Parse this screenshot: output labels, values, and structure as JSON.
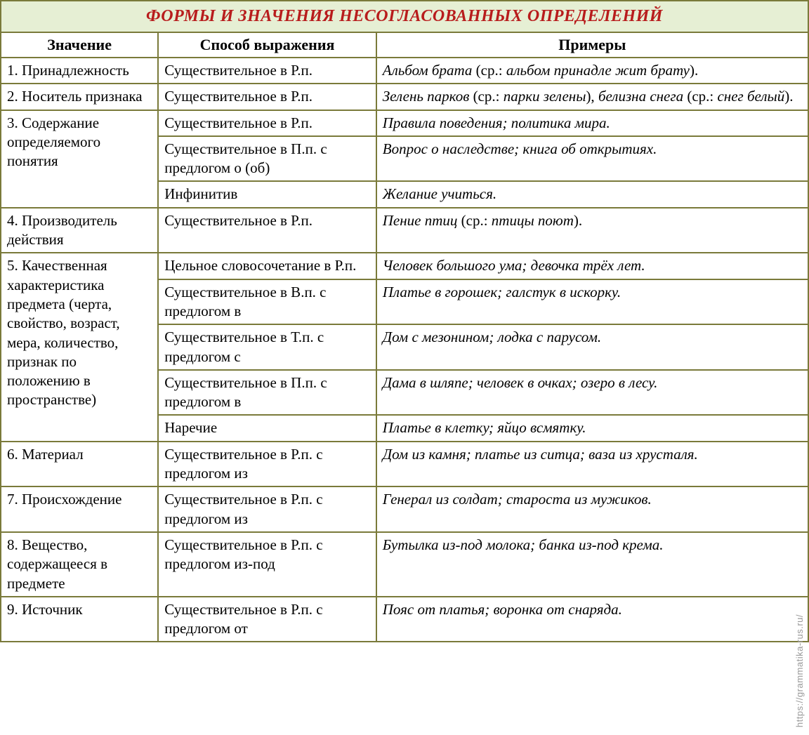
{
  "title": "ФОРМЫ И ЗНАЧЕНИЯ НЕСОГЛАСОВАННЫХ ОПРЕДЕЛЕНИЙ",
  "columns": {
    "meaning": "Значение",
    "method": "Способ выражения",
    "examples": "Примеры"
  },
  "col_widths": {
    "meaning": "19.5%",
    "method": "27%",
    "examples": "53.5%"
  },
  "rows": [
    {
      "meaning": "1. Принадлежность",
      "sub": [
        {
          "method": "Существительное в Р.п.",
          "examples_html": "<i>Альбом брата</i> <span class='note'>(ср.:</span> <i>альбом принадле жит брату</i><span class='note'>).</span>"
        }
      ]
    },
    {
      "meaning": "2. Носитель признака",
      "sub": [
        {
          "method": "Существительное в Р.п.",
          "examples_html": "<i>Зелень парков</i> <span class='note'>(ср.:</span> <i>парки зелены</i><span class='note'>),</span> <i>белизна снега</i> <span class='note'>(ср.:</span> <i>снег белый</i><span class='note'>).</span>"
        }
      ]
    },
    {
      "meaning": "3. Содержание определяемого понятия",
      "sub": [
        {
          "method": "Существительное в Р.п.",
          "examples_html": "<i>Правила поведения; политика мира.</i>"
        },
        {
          "method": "Существительное в П.п. с предлогом о (об)",
          "examples_html": "<i>Вопрос о наследстве; книга об открытиях.</i>"
        },
        {
          "method": "Инфинитив",
          "examples_html": "<i>Желание учиться.</i>"
        }
      ]
    },
    {
      "meaning": "4. Производитель действия",
      "sub": [
        {
          "method": "Существительное в Р.п.",
          "examples_html": "<i>Пение птиц</i> <span class='note'>(ср.:</span> <i>птицы поют</i><span class='note'>).</span>"
        }
      ]
    },
    {
      "meaning": "5. Качественная характеристика предмета (черта, свойство, возраст, мера, количество, признак по положению в пространстве)",
      "sub": [
        {
          "method": "Цельное словосочетание в Р.п.",
          "examples_html": "<i>Человек большого ума; девочка трёх лет.</i>"
        },
        {
          "method": "Существительное в В.п. с предлогом в",
          "examples_html": "<i>Платье в горошек; галстук в искорку.</i>"
        },
        {
          "method": "Существительное в Т.п. с предлогом с",
          "examples_html": "<i>Дом с мезонином; лодка с парусом.</i>"
        },
        {
          "method": "Существительное в П.п. с предлогом в",
          "examples_html": "<i>Дама в шляпе; человек в очках; озеро в лесу.</i>"
        },
        {
          "method": "Наречие",
          "examples_html": "<i>Платье в клетку; яйцо всмятку.</i>"
        }
      ]
    },
    {
      "meaning": "6. Материал",
      "sub": [
        {
          "method": "Существительное в Р.п. с предлогом из",
          "examples_html": "<i>Дом из камня; платье из ситца; ваза из хрусталя.</i>"
        }
      ]
    },
    {
      "meaning": "7. Происхождение",
      "sub": [
        {
          "method": "Существительное в Р.п. с предлогом из",
          "examples_html": "<i>Генерал из солдат; староста из мужиков.</i>"
        }
      ]
    },
    {
      "meaning": "8. Вещество, содержащееся в предмете",
      "sub": [
        {
          "method": "Существительное в Р.п. с предлогом из-под",
          "examples_html": "<i>Бутылка из-под молока; банка из-под крема.</i>"
        }
      ]
    },
    {
      "meaning": "9. Источник",
      "sub": [
        {
          "method": "Существительное в Р.п. с предлогом от",
          "examples_html": "<i>Пояс от платья; воронка от снаряда.</i>"
        }
      ]
    }
  ],
  "watermark": "https://grammatika-rus.ru/",
  "colors": {
    "border": "#7a7a3a",
    "title_bg": "#e6efd4",
    "title_fg": "#b81c1c"
  }
}
